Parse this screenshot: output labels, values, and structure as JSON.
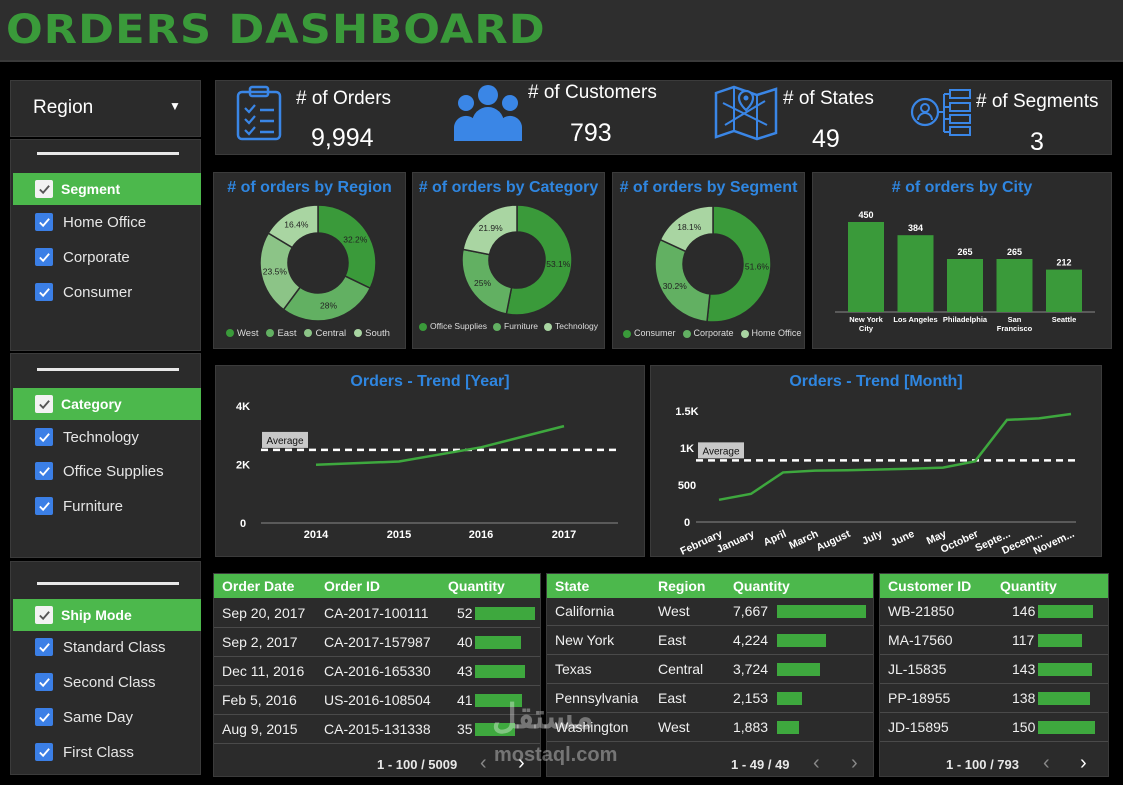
{
  "header": {
    "title": "ORDERS DASHBOARD"
  },
  "region_filter": {
    "label": "Region"
  },
  "segment_filter": {
    "title": "Segment",
    "items": [
      "Home Office",
      "Corporate",
      "Consumer"
    ]
  },
  "category_filter": {
    "title": "Category",
    "items": [
      "Technology",
      "Office Supplies",
      "Furniture"
    ]
  },
  "shipmode_filter": {
    "title": "Ship Mode",
    "items": [
      "Standard Class",
      "Second Class",
      "Same Day",
      "First Class"
    ]
  },
  "kpis": [
    {
      "label": "# of Orders",
      "value": "9,994",
      "icon": "clipboard-list-icon"
    },
    {
      "label": "# of Customers",
      "value": "793",
      "icon": "users-icon"
    },
    {
      "label": "# of States",
      "value": "49",
      "icon": "map-icon"
    },
    {
      "label": "# of Segments",
      "value": "3",
      "icon": "hierarchy-icon"
    }
  ],
  "colors": {
    "accent": "#4cb84c",
    "title_blue": "#2f86e0",
    "dark_green": "#3a9a3a",
    "mid_green": "#62b062",
    "light_green": "#a9d5a2"
  },
  "chart_data": [
    {
      "type": "pie",
      "title": "# of orders by Region",
      "slices": [
        {
          "label": "West",
          "value": 32.2,
          "text": "32.2%"
        },
        {
          "label": "East",
          "value": 28,
          "text": "28%"
        },
        {
          "label": "Central",
          "value": 23.5,
          "text": "23.5%"
        },
        {
          "label": "South",
          "value": 16.4,
          "text": "16.4%"
        }
      ],
      "legend": [
        "West",
        "East",
        "Central",
        "South"
      ]
    },
    {
      "type": "pie",
      "title": "# of orders by Category",
      "slices": [
        {
          "label": "Office Supplies",
          "value": 53.1,
          "text": "53.1%"
        },
        {
          "label": "Furniture",
          "value": 25,
          "text": "25%"
        },
        {
          "label": "Technology",
          "value": 21.9,
          "text": "21.9%"
        }
      ],
      "legend": [
        "Office Supplies",
        "Furniture",
        "Technology"
      ]
    },
    {
      "type": "pie",
      "title": "# of orders by Segment",
      "slices": [
        {
          "label": "Consumer",
          "value": 51.6,
          "text": "51.6%"
        },
        {
          "label": "Corporate",
          "value": 30.2,
          "text": "30.2%"
        },
        {
          "label": "Home Office",
          "value": 18.1,
          "text": "18.1%"
        }
      ],
      "legend": [
        "Consumer",
        "Corporate",
        "Home Office"
      ]
    },
    {
      "type": "bar",
      "title": "# of orders by City",
      "categories": [
        "New York City",
        "Los Angeles",
        "Philadelphia",
        "San Francisco",
        "Seattle"
      ],
      "category_lines": [
        [
          "New York",
          "City"
        ],
        [
          "Los Angeles"
        ],
        [
          "Philadelphia"
        ],
        [
          "San",
          "Francisco"
        ],
        [
          "Seattle"
        ]
      ],
      "values": [
        450,
        384,
        265,
        265,
        212
      ],
      "value_labels": [
        "450",
        "384",
        "265",
        "265",
        "212"
      ],
      "ylim": [
        0,
        500
      ]
    },
    {
      "type": "line",
      "title": "Orders - Trend [Year]",
      "x": [
        "2014",
        "2015",
        "2016",
        "2017"
      ],
      "values": [
        1993,
        2102,
        2587,
        3312
      ],
      "average": 2498.5,
      "average_label": "Average",
      "yticks": [
        {
          "value": 0,
          "label": "0"
        },
        {
          "value": 2000,
          "label": "2K"
        },
        {
          "value": 4000,
          "label": "4K"
        }
      ],
      "ylim": [
        0,
        4000
      ]
    },
    {
      "type": "line",
      "title": "Orders - Trend [Month]",
      "x": [
        "February",
        "January",
        "April",
        "March",
        "August",
        "July",
        "June",
        "May",
        "October",
        "Septe...",
        "Decem...",
        "Novem..."
      ],
      "values": [
        300,
        380,
        670,
        695,
        700,
        710,
        720,
        735,
        820,
        1380,
        1400,
        1460
      ],
      "average": 833,
      "average_label": "Average",
      "yticks": [
        {
          "value": 0,
          "label": "0"
        },
        {
          "value": 500,
          "label": "500"
        },
        {
          "value": 1000,
          "label": "1K"
        },
        {
          "value": 1500,
          "label": "1.5K"
        }
      ],
      "ylim": [
        0,
        1500
      ]
    }
  ],
  "orders_table": {
    "headers": [
      "Order Date",
      "Order ID",
      "Quantity"
    ],
    "rows": [
      {
        "date": "Sep 20, 2017",
        "id": "CA-2017-100111",
        "qty": "52",
        "q": 52
      },
      {
        "date": "Sep 2, 2017",
        "id": "CA-2017-157987",
        "qty": "40",
        "q": 40
      },
      {
        "date": "Dec 11, 2016",
        "id": "CA-2016-165330",
        "qty": "43",
        "q": 43
      },
      {
        "date": "Feb 5, 2016",
        "id": "US-2016-108504",
        "qty": "41",
        "q": 41
      },
      {
        "date": "Aug 9, 2015",
        "id": "CA-2015-131338",
        "qty": "35",
        "q": 35
      }
    ],
    "pager": "1 - 100 / 5009",
    "max": 52
  },
  "states_table": {
    "headers": [
      "State",
      "Region",
      "Quantity"
    ],
    "rows": [
      {
        "state": "California",
        "region": "West",
        "qty": "7,667",
        "q": 7667
      },
      {
        "state": "New York",
        "region": "East",
        "qty": "4,224",
        "q": 4224
      },
      {
        "state": "Texas",
        "region": "Central",
        "qty": "3,724",
        "q": 3724
      },
      {
        "state": "Pennsylvania",
        "region": "East",
        "qty": "2,153",
        "q": 2153
      },
      {
        "state": "Washington",
        "region": "West",
        "qty": "1,883",
        "q": 1883
      }
    ],
    "pager": "1 - 49 / 49",
    "max": 7667
  },
  "customers_table": {
    "headers": [
      "Customer ID",
      "Quantity"
    ],
    "rows": [
      {
        "id": "WB-21850",
        "qty": "146",
        "q": 146
      },
      {
        "id": "MA-17560",
        "qty": "117",
        "q": 117
      },
      {
        "id": "JL-15835",
        "qty": "143",
        "q": 143
      },
      {
        "id": "PP-18955",
        "qty": "138",
        "q": 138
      },
      {
        "id": "JD-15895",
        "qty": "150",
        "q": 150
      }
    ],
    "pager": "1 - 100 / 793",
    "max": 150
  },
  "watermark": {
    "arabic": "مستقل",
    "latin": "mostaql.com"
  }
}
